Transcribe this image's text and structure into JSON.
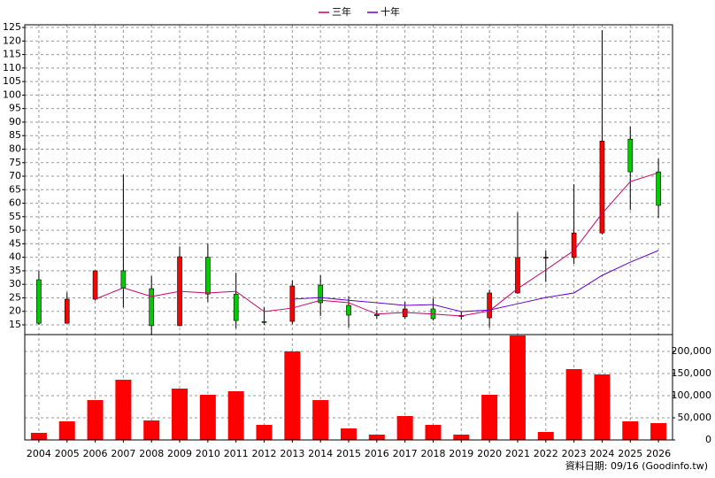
{
  "chart_data": {
    "type": "candlestick",
    "categories": [
      "2004",
      "2005",
      "2006",
      "2007",
      "2008",
      "2009",
      "2010",
      "2011",
      "2012",
      "2013",
      "2014",
      "2015",
      "2016",
      "2017",
      "2018",
      "2019",
      "2020",
      "2021",
      "2022",
      "2023",
      "2024",
      "2025",
      "2026"
    ],
    "open": [
      31.7,
      15.6,
      24.5,
      35,
      28.4,
      14.7,
      40,
      26.4,
      16.2,
      16.3,
      29.7,
      22.2,
      18.8,
      18,
      20.9,
      18.5,
      17.6,
      26.8,
      39.8,
      39.9,
      49,
      83.7,
      71.6
    ],
    "high": [
      35,
      27,
      35,
      70.6,
      33,
      44,
      45,
      34.3,
      21.5,
      31.4,
      33.3,
      25.5,
      20.5,
      23.5,
      24.8,
      19.9,
      28,
      56.6,
      42.5,
      67,
      124,
      88.3,
      76.5
    ],
    "low": [
      15,
      15.5,
      24,
      21.5,
      11.5,
      14.5,
      23.5,
      13.7,
      15,
      15.3,
      18.3,
      14,
      17.3,
      17.3,
      16.6,
      17,
      14,
      26.5,
      31,
      37.6,
      48.5,
      57.5,
      54.6
    ],
    "close": [
      15.6,
      24.5,
      35,
      28.7,
      14.7,
      40.2,
      26.4,
      16.6,
      16,
      29.4,
      23.2,
      18.6,
      18.4,
      20.9,
      17.3,
      18.1,
      26.8,
      39.9,
      40,
      49,
      83,
      71.6,
      59.2
    ],
    "up_color": "#ff0000",
    "down_color": "#00cc00",
    "series": [
      {
        "name": "三年",
        "color": "#cc0066",
        "values": [
          null,
          null,
          24.5,
          28.7,
          25.5,
          27.4,
          26.8,
          27.4,
          19.9,
          21.2,
          24.1,
          23.2,
          19,
          19.6,
          19,
          18.3,
          20.2,
          28.4,
          35.3,
          42.5,
          56.2,
          68,
          71.3
        ]
      },
      {
        "name": "十年",
        "color": "#6600cc",
        "values": [
          null,
          null,
          null,
          null,
          null,
          null,
          null,
          null,
          null,
          24.5,
          25.1,
          24.1,
          23.2,
          22.2,
          22.5,
          19.9,
          20.5,
          22.8,
          25.1,
          26.8,
          33.3,
          38.2,
          42.5
        ]
      }
    ],
    "ylim": [
      11.4,
      126
    ],
    "yticks": [
      15,
      20,
      25,
      30,
      35,
      40,
      45,
      50,
      55,
      60,
      65,
      70,
      75,
      80,
      85,
      90,
      95,
      100,
      105,
      110,
      115,
      120,
      125
    ],
    "volume": {
      "color": "#ff0000",
      "values": [
        16000,
        42000,
        90000,
        136000,
        44000,
        116000,
        102000,
        110000,
        34000,
        200000,
        90000,
        26000,
        12000,
        54000,
        34000,
        12000,
        102000,
        236000,
        18000,
        160000,
        148000,
        42000,
        38000
      ],
      "ylim": [
        0,
        238000
      ],
      "yticks": [
        0,
        {
          "value": 50000,
          "label": "50,000"
        },
        {
          "value": 100000,
          "label": "100,000"
        },
        {
          "value": 150000,
          "label": "150,000"
        },
        {
          "value": 200000,
          "label": "200,000"
        }
      ]
    },
    "grid": true,
    "legend": "top",
    "footnote": "資料日期: 09/16 (Goodinfo.tw)"
  }
}
